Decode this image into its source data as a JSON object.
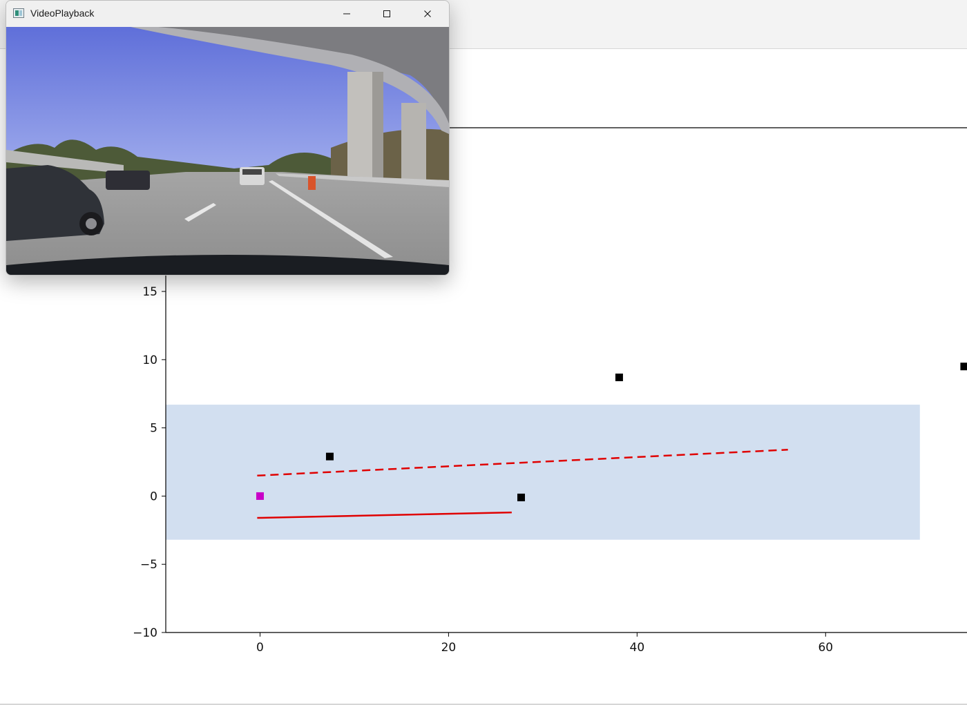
{
  "window": {
    "title": "VideoPlayback"
  },
  "chart_data": {
    "type": "scatter",
    "xlim": [
      -10,
      75
    ],
    "ylim": [
      -10,
      27
    ],
    "x_ticks": [
      0,
      20,
      40,
      60
    ],
    "y_ticks": [
      -10,
      -5,
      0,
      5,
      10,
      15
    ],
    "x_tick_labels": [
      "0",
      "20",
      "40",
      "60"
    ],
    "y_tick_labels": [
      "−10",
      "−5",
      "0",
      "5",
      "10",
      "15"
    ],
    "region": {
      "x": [
        -10,
        70
      ],
      "y": [
        -3.2,
        6.7
      ],
      "color": "#d2dff0"
    },
    "ego": {
      "x": 0,
      "y": 0,
      "color": "#c800c8"
    },
    "objects": [
      {
        "x": 7.4,
        "y": 2.9
      },
      {
        "x": 27.7,
        "y": -0.1
      },
      {
        "x": 38.1,
        "y": 8.7
      },
      {
        "x": 74.7,
        "y": 9.5
      }
    ],
    "lane_left": {
      "x": [
        -0.3,
        56
      ],
      "y": [
        1.5,
        3.4
      ],
      "style": "dashed",
      "color": "#e00000"
    },
    "lane_right": {
      "x": [
        -0.3,
        26.7
      ],
      "y": [
        -1.6,
        -1.2
      ],
      "style": "solid",
      "color": "#e00000"
    },
    "object_color": "#000000"
  }
}
